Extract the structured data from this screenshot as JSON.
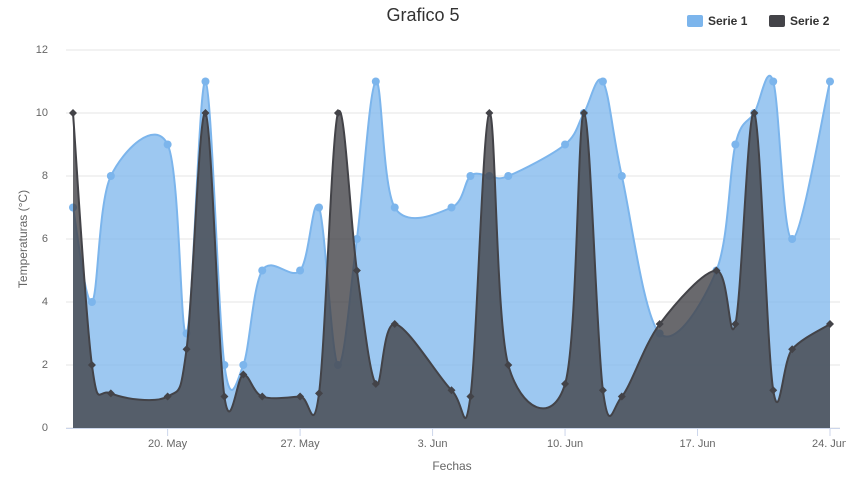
{
  "chart_data": {
    "type": "areaspline",
    "title": "Grafico 5",
    "x_label": "Fechas",
    "y_label": "Temperaturas (°C)",
    "x": [
      "15. May",
      "16. May",
      "17. May",
      "20. May",
      "21. May",
      "22. May",
      "23. May",
      "24. May",
      "25. May",
      "27. May",
      "28. May",
      "29. May",
      "30. May",
      "31. May",
      "1. Jun",
      "4. Jun",
      "5. Jun",
      "6. Jun",
      "7. Jun",
      "10. Jun",
      "11. Jun",
      "12. Jun",
      "13. Jun",
      "15. Jun",
      "18. Jun",
      "19. Jun",
      "20. Jun",
      "21. Jun",
      "22. Jun",
      "24. Jun"
    ],
    "xlim": [
      "15. May",
      "24. Jun"
    ],
    "xticks": [
      "20. May",
      "27. May",
      "3. Jun",
      "10. Jun",
      "17. Jun",
      "24. Jun"
    ],
    "ylim": [
      0,
      12
    ],
    "yticks": [
      0,
      2,
      4,
      6,
      8,
      10,
      12
    ],
    "grid": true,
    "legend": "top-right",
    "series": [
      {
        "name": "Serie 1",
        "color": "#7cb5ec",
        "values": [
          7,
          4,
          8,
          9,
          3,
          11,
          2,
          2,
          5,
          5,
          7,
          2,
          6,
          11,
          7,
          7,
          8,
          8,
          8,
          9,
          10,
          11,
          8,
          3,
          5,
          9,
          10,
          11,
          6,
          11
        ]
      },
      {
        "name": "Serie 2",
        "color": "#434348",
        "values": [
          10,
          2,
          1.1,
          1,
          2.5,
          10,
          1,
          1.7,
          1,
          1,
          1.1,
          10,
          5,
          1.4,
          3.3,
          1.2,
          1,
          10,
          2,
          1.4,
          10,
          1.2,
          1,
          3.3,
          5,
          3.3,
          10,
          1.2,
          2.5,
          3.3
        ]
      }
    ]
  }
}
